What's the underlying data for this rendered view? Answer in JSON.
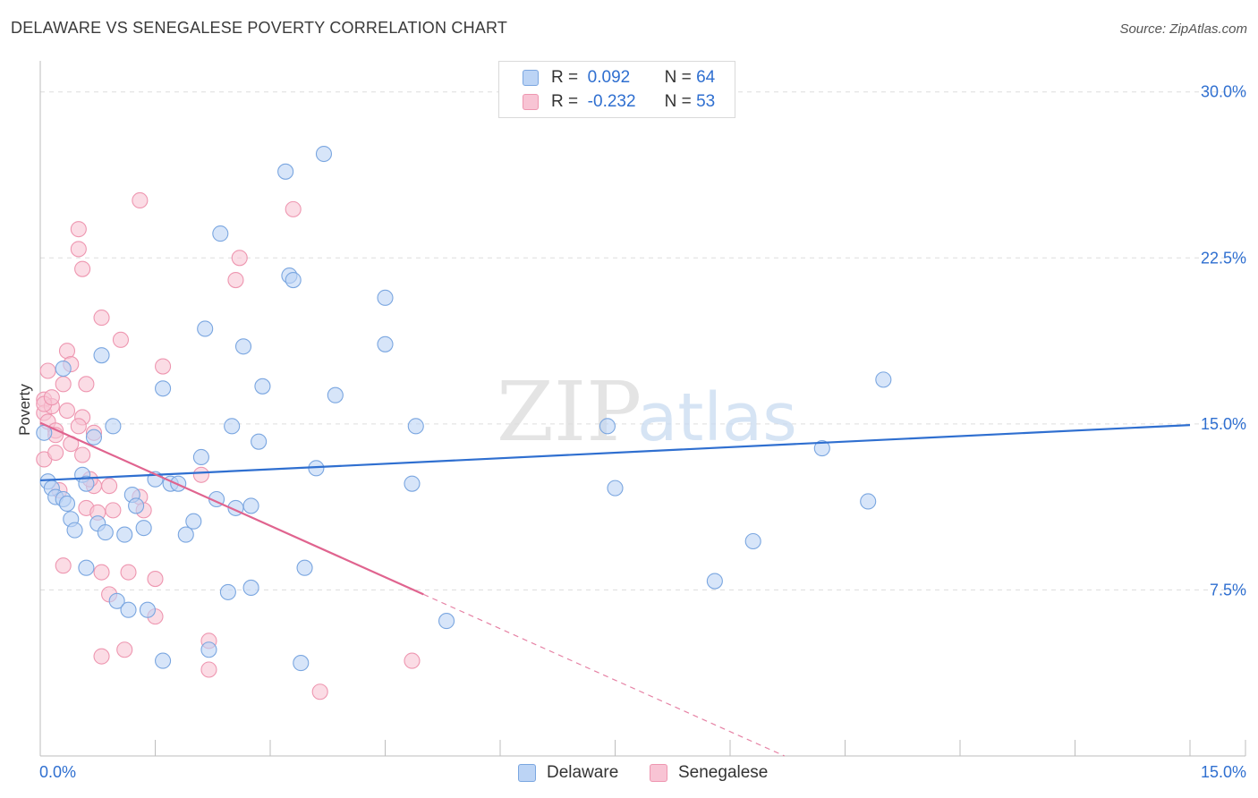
{
  "header": {
    "title": "DELAWARE VS SENEGALESE POVERTY CORRELATION CHART",
    "source": "Source: ZipAtlas.com"
  },
  "watermark": {
    "zip": "ZIP",
    "atlas": "atlas"
  },
  "legend_top": {
    "rows": [
      {
        "r_label": "R =",
        "r_value": "0.092",
        "n_label": "N =",
        "n_value": "64"
      },
      {
        "r_label": "R =",
        "r_value": "-0.232",
        "n_label": "N =",
        "n_value": "53"
      }
    ]
  },
  "colors": {
    "delaware_fill": "#bcd4f5",
    "delaware_stroke": "#7aa6e0",
    "delaware_line": "#2f6fd0",
    "senegalese_fill": "#f8c4d4",
    "senegalese_stroke": "#ee96b0",
    "senegalese_line": "#e0648f",
    "tick_label": "#2f6fd0",
    "grid": "#dddddd"
  },
  "chart_data": {
    "type": "scatter",
    "title": "DELAWARE VS SENEGALESE POVERTY CORRELATION CHART",
    "xlabel": "",
    "ylabel": "Poverty",
    "xlim": [
      0,
      15
    ],
    "ylim": [
      0,
      31
    ],
    "x_tick_labels": [
      "0.0%",
      "15.0%"
    ],
    "y_ticks": [
      7.5,
      15,
      22.5,
      30
    ],
    "y_tick_labels": [
      "7.5%",
      "15.0%",
      "22.5%",
      "30.0%"
    ],
    "grid": true,
    "legend_position": "bottom",
    "series": [
      {
        "name": "Delaware",
        "r": 0.092,
        "n": 64,
        "trend": {
          "x": [
            0,
            15
          ],
          "y": [
            12.45,
            14.95
          ],
          "dashed_after": null
        },
        "points": [
          [
            0.05,
            14.6
          ],
          [
            0.1,
            12.4
          ],
          [
            0.15,
            12.1
          ],
          [
            0.2,
            11.7
          ],
          [
            0.3,
            11.6
          ],
          [
            0.35,
            11.4
          ],
          [
            0.4,
            10.7
          ],
          [
            0.45,
            10.2
          ],
          [
            0.3,
            17.5
          ],
          [
            0.55,
            12.7
          ],
          [
            0.6,
            12.3
          ],
          [
            0.7,
            14.4
          ],
          [
            0.75,
            10.5
          ],
          [
            0.8,
            18.1
          ],
          [
            0.85,
            10.1
          ],
          [
            0.95,
            14.9
          ],
          [
            1.1,
            10.0
          ],
          [
            1.2,
            11.8
          ],
          [
            1.25,
            11.3
          ],
          [
            1.35,
            10.3
          ],
          [
            1.5,
            12.5
          ],
          [
            1.6,
            16.6
          ],
          [
            1.7,
            12.3
          ],
          [
            1.8,
            12.3
          ],
          [
            1.9,
            10.0
          ],
          [
            2.0,
            10.6
          ],
          [
            2.1,
            13.5
          ],
          [
            2.15,
            19.3
          ],
          [
            2.3,
            11.6
          ],
          [
            2.35,
            23.6
          ],
          [
            2.5,
            14.9
          ],
          [
            2.55,
            11.2
          ],
          [
            2.65,
            18.5
          ],
          [
            2.75,
            11.3
          ],
          [
            2.85,
            14.2
          ],
          [
            2.9,
            16.7
          ],
          [
            3.2,
            26.4
          ],
          [
            3.25,
            21.7
          ],
          [
            3.3,
            21.5
          ],
          [
            3.6,
            13.0
          ],
          [
            3.7,
            27.2
          ],
          [
            3.85,
            16.3
          ],
          [
            4.5,
            20.7
          ],
          [
            4.5,
            18.6
          ],
          [
            4.9,
            14.9
          ],
          [
            4.85,
            12.3
          ],
          [
            5.3,
            6.1
          ],
          [
            7.4,
            14.9
          ],
          [
            7.5,
            12.1
          ],
          [
            8.8,
            7.9
          ],
          [
            9.3,
            9.7
          ],
          [
            10.2,
            13.9
          ],
          [
            10.8,
            11.5
          ],
          [
            11.0,
            17.0
          ],
          [
            0.6,
            8.5
          ],
          [
            1.0,
            7.0
          ],
          [
            1.15,
            6.6
          ],
          [
            1.4,
            6.6
          ],
          [
            1.6,
            4.3
          ],
          [
            2.2,
            4.8
          ],
          [
            2.45,
            7.4
          ],
          [
            2.75,
            7.6
          ],
          [
            3.4,
            4.2
          ],
          [
            3.45,
            8.5
          ]
        ]
      },
      {
        "name": "Senegalese",
        "r": -0.232,
        "n": 53,
        "trend": {
          "x": [
            0,
            15
          ],
          "y": [
            15.05,
            -8.2
          ],
          "solid_until_x": 5.0
        },
        "points": [
          [
            0.05,
            16.1
          ],
          [
            0.05,
            15.5
          ],
          [
            0.05,
            13.4
          ],
          [
            0.1,
            17.4
          ],
          [
            0.1,
            15.1
          ],
          [
            0.15,
            15.8
          ],
          [
            0.2,
            14.7
          ],
          [
            0.2,
            13.7
          ],
          [
            0.25,
            12.0
          ],
          [
            0.35,
            18.3
          ],
          [
            0.3,
            16.8
          ],
          [
            0.35,
            15.6
          ],
          [
            0.4,
            17.7
          ],
          [
            0.4,
            14.1
          ],
          [
            0.5,
            23.8
          ],
          [
            0.5,
            22.9
          ],
          [
            0.55,
            22.0
          ],
          [
            0.55,
            15.3
          ],
          [
            0.6,
            16.8
          ],
          [
            0.6,
            11.2
          ],
          [
            0.7,
            14.6
          ],
          [
            0.7,
            12.2
          ],
          [
            0.75,
            11.0
          ],
          [
            0.8,
            8.3
          ],
          [
            0.8,
            19.8
          ],
          [
            0.9,
            12.2
          ],
          [
            0.9,
            7.3
          ],
          [
            1.05,
            18.8
          ],
          [
            1.1,
            4.8
          ],
          [
            1.15,
            8.3
          ],
          [
            1.3,
            11.7
          ],
          [
            1.35,
            11.1
          ],
          [
            1.3,
            25.1
          ],
          [
            1.5,
            8.0
          ],
          [
            1.5,
            6.3
          ],
          [
            1.6,
            17.6
          ],
          [
            2.1,
            12.7
          ],
          [
            2.2,
            5.2
          ],
          [
            2.2,
            3.9
          ],
          [
            2.55,
            21.5
          ],
          [
            2.6,
            22.5
          ],
          [
            3.3,
            24.7
          ],
          [
            3.65,
            2.9
          ],
          [
            4.85,
            4.3
          ],
          [
            0.05,
            15.9
          ],
          [
            0.15,
            16.2
          ],
          [
            0.3,
            8.6
          ],
          [
            0.55,
            13.6
          ],
          [
            0.8,
            4.5
          ],
          [
            0.95,
            11.1
          ],
          [
            0.5,
            14.9
          ],
          [
            0.2,
            14.5
          ],
          [
            0.65,
            12.5
          ]
        ]
      }
    ]
  }
}
